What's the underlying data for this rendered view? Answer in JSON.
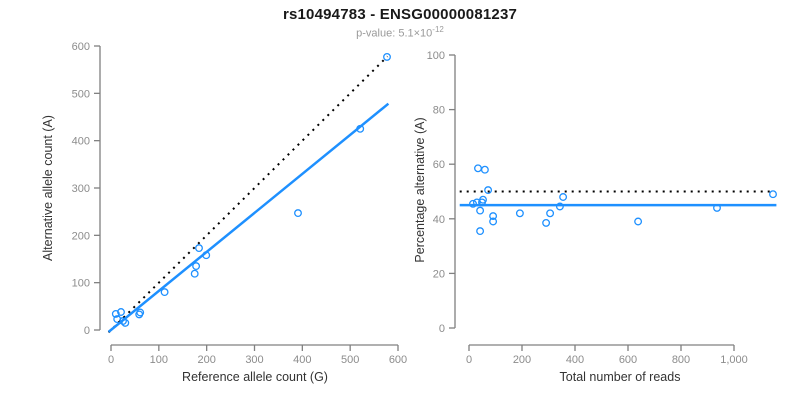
{
  "header": {
    "title": "rs10494783 - ENSG00000081237",
    "pvalue_prefix": "p-value: 5.1×10",
    "pvalue_exponent": "-12"
  },
  "colors": {
    "point": "#1E90FF",
    "regression_line": "#1E90FF",
    "identity_line": "#000000",
    "axis_line": "#808080",
    "tick_label": "#8c8c8c",
    "axis_title": "#333333",
    "subtitle": "#9a9a9a"
  },
  "chart_data": [
    {
      "type": "scatter",
      "name": "allele-counts-scatter",
      "xlabel": "Reference allele count (G)",
      "ylabel": "Alternative allele count (A)",
      "xlim": [
        0,
        600
      ],
      "ylim": [
        0,
        600
      ],
      "xticks": [
        0,
        100,
        200,
        300,
        400,
        500,
        600
      ],
      "xtick_labels": [
        "0",
        "100",
        "200",
        "300",
        "400",
        "500",
        "600"
      ],
      "yticks": [
        0,
        100,
        200,
        300,
        400,
        500,
        600
      ],
      "ytick_labels": [
        "0",
        "100",
        "200",
        "300",
        "400",
        "500",
        "600"
      ],
      "grid": false,
      "points": [
        [
          10,
          34
        ],
        [
          13,
          23
        ],
        [
          21,
          38
        ],
        [
          25,
          19
        ],
        [
          30,
          15
        ],
        [
          59,
          33
        ],
        [
          61,
          37
        ],
        [
          112,
          80
        ],
        [
          175,
          119
        ],
        [
          178,
          135
        ],
        [
          184,
          173
        ],
        [
          199,
          158
        ],
        [
          391,
          247
        ],
        [
          521,
          425
        ],
        [
          577,
          577
        ]
      ],
      "lines": [
        {
          "name": "identity-line",
          "x1": -5,
          "y1": -5,
          "x2": 578,
          "y2": 578,
          "style": "dotted",
          "color": "#000000",
          "width": 2
        },
        {
          "name": "regression-line",
          "x1": -5,
          "y1": -4,
          "x2": 580,
          "y2": 478,
          "style": "solid",
          "color": "#1E90FF",
          "width": 2.5
        }
      ]
    },
    {
      "type": "scatter",
      "name": "percentage-alternative-scatter",
      "xlabel": "Total number of reads",
      "ylabel": "Percentage alternative (A)",
      "xlim": [
        0,
        1000
      ],
      "ylim": [
        0,
        100
      ],
      "xticks": [
        0,
        200,
        400,
        600,
        800,
        1000
      ],
      "xtick_labels": [
        "0",
        "200",
        "400",
        "600",
        "800",
        "1,000"
      ],
      "yticks": [
        0,
        20,
        40,
        60,
        80,
        100
      ],
      "ytick_labels": [
        "0",
        "20",
        "40",
        "60",
        "80",
        "100"
      ],
      "grid": false,
      "points": [
        [
          34,
          58.5
        ],
        [
          60,
          58
        ],
        [
          72,
          50.5
        ],
        [
          15,
          45.5
        ],
        [
          30,
          46
        ],
        [
          49,
          46
        ],
        [
          53,
          47
        ],
        [
          42,
          43
        ],
        [
          42,
          35.5
        ],
        [
          91,
          41
        ],
        [
          91,
          39
        ],
        [
          192,
          42
        ],
        [
          291,
          38.5
        ],
        [
          306,
          42
        ],
        [
          343,
          44.5
        ],
        [
          355,
          48
        ],
        [
          638,
          39
        ],
        [
          936,
          44
        ],
        [
          1147,
          49
        ]
      ],
      "lines": [
        {
          "name": "expected-50pct-line",
          "x1": -35,
          "y1": 50,
          "x2": 1135,
          "y2": 50,
          "style": "dotted",
          "color": "#000000",
          "width": 2
        },
        {
          "name": "mean-percentage-line",
          "x1": -35,
          "y1": 45,
          "x2": 1160,
          "y2": 45,
          "style": "solid",
          "color": "#1E90FF",
          "width": 2.5
        }
      ]
    }
  ]
}
